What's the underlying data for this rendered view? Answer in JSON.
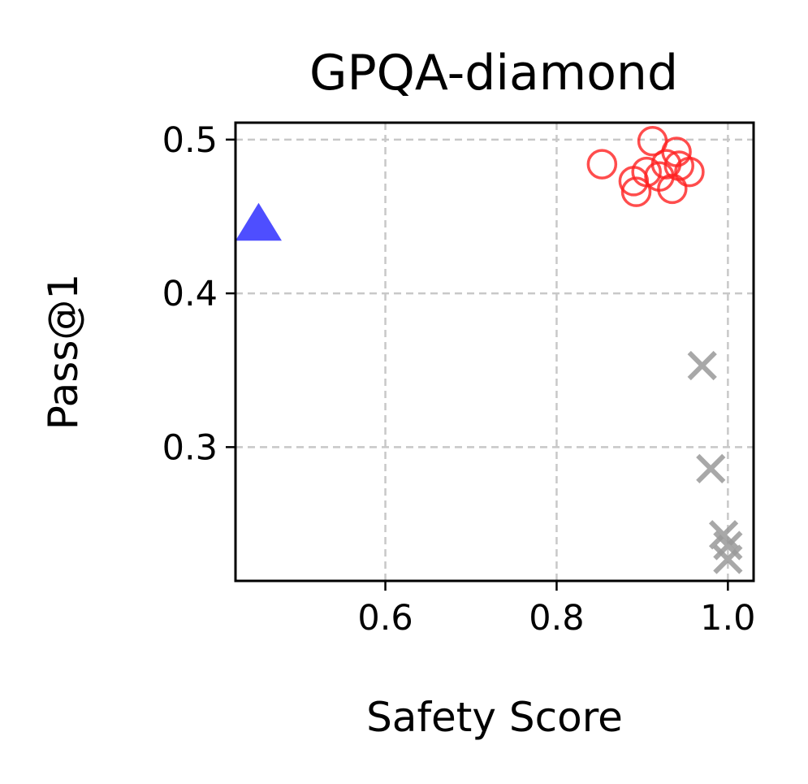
{
  "chart_data": {
    "type": "scatter",
    "title": "GPQA-diamond",
    "xlabel": "Safety Score",
    "ylabel": "Pass@1",
    "xlim": [
      0.425,
      1.03
    ],
    "ylim": [
      0.213,
      0.511
    ],
    "xticks": [
      0.6,
      0.8,
      1.0
    ],
    "xtick_labels": [
      "0.6",
      "0.8",
      "1.0"
    ],
    "yticks": [
      0.3,
      0.4,
      0.5
    ],
    "ytick_labels": [
      "0.3",
      "0.4",
      "0.5"
    ],
    "grid": true,
    "legend": null,
    "series": [
      {
        "marker": "triangle",
        "color": "#4444ff",
        "points": [
          [
            0.452,
            0.443
          ]
        ]
      },
      {
        "marker": "open-circle",
        "color": "#ff2020",
        "points": [
          [
            0.853,
            0.484
          ],
          [
            0.89,
            0.473
          ],
          [
            0.893,
            0.466
          ],
          [
            0.905,
            0.479
          ],
          [
            0.912,
            0.499
          ],
          [
            0.92,
            0.476
          ],
          [
            0.928,
            0.484
          ],
          [
            0.935,
            0.468
          ],
          [
            0.94,
            0.492
          ],
          [
            0.943,
            0.483
          ],
          [
            0.955,
            0.479
          ]
        ]
      },
      {
        "marker": "x",
        "color": "#999999",
        "points": [
          [
            0.97,
            0.353
          ],
          [
            0.98,
            0.286
          ],
          [
            0.995,
            0.243
          ],
          [
            1.0,
            0.236
          ],
          [
            1.0,
            0.227
          ]
        ]
      }
    ]
  }
}
